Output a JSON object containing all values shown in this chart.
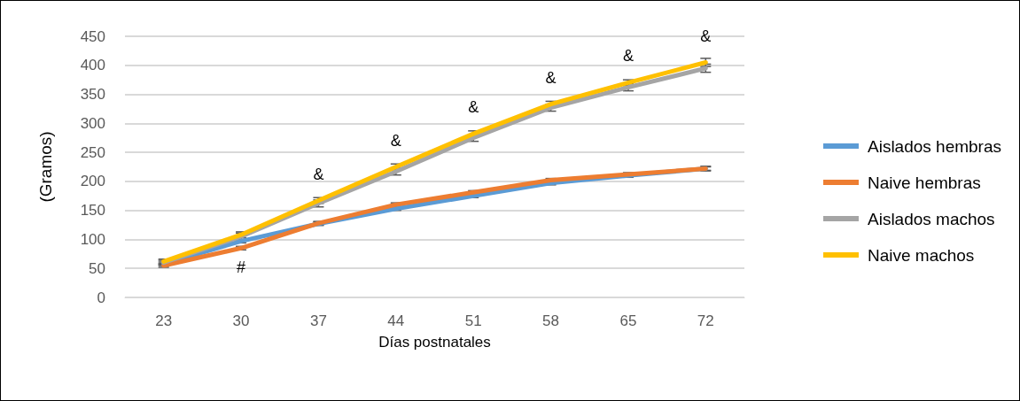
{
  "chart_data": {
    "type": "line",
    "xlabel": "Días postnatales",
    "ylabel": "(Gramos)",
    "categories": [
      "23",
      "30",
      "37",
      "44",
      "51",
      "58",
      "65",
      "72"
    ],
    "series": [
      {
        "name": "Aislados hembras",
        "color": "#5b9bd5",
        "values": [
          58,
          97,
          127,
          153,
          175,
          197,
          210,
          222
        ],
        "errors": [
          3,
          3,
          3,
          3,
          3,
          3,
          3,
          3
        ]
      },
      {
        "name": "Naive hembras",
        "color": "#ed7d31",
        "values": [
          55,
          85,
          128,
          160,
          181,
          202,
          212,
          222
        ],
        "errors": [
          3,
          3,
          3,
          3,
          3,
          3,
          3,
          4
        ]
      },
      {
        "name": "Aislados machos",
        "color": "#a5a5a5",
        "values": [
          60,
          105,
          162,
          217,
          275,
          327,
          362,
          395
        ],
        "errors": [
          4,
          6,
          6,
          6,
          6,
          6,
          6,
          7
        ]
      },
      {
        "name": "Naive machos",
        "color": "#ffc000",
        "values": [
          62,
          108,
          167,
          225,
          282,
          333,
          370,
          405
        ],
        "errors": [
          4,
          5,
          5,
          5,
          5,
          5,
          5,
          7
        ]
      }
    ],
    "ylim": [
      0,
      450
    ],
    "yticks": [
      0,
      50,
      100,
      150,
      200,
      250,
      300,
      350,
      400,
      450
    ],
    "grid": "y",
    "legend": "right",
    "marker": "none",
    "line_style": "solid",
    "annotations": [
      {
        "text": "#",
        "x": "30",
        "y": 85
      },
      {
        "text": "&",
        "x": "37",
        "y": 167
      },
      {
        "text": "&",
        "x": "44",
        "y": 225
      },
      {
        "text": "&",
        "x": "51",
        "y": 282
      },
      {
        "text": "&",
        "x": "58",
        "y": 333
      },
      {
        "text": "&",
        "x": "65",
        "y": 370
      },
      {
        "text": "&",
        "x": "72",
        "y": 405
      }
    ]
  }
}
